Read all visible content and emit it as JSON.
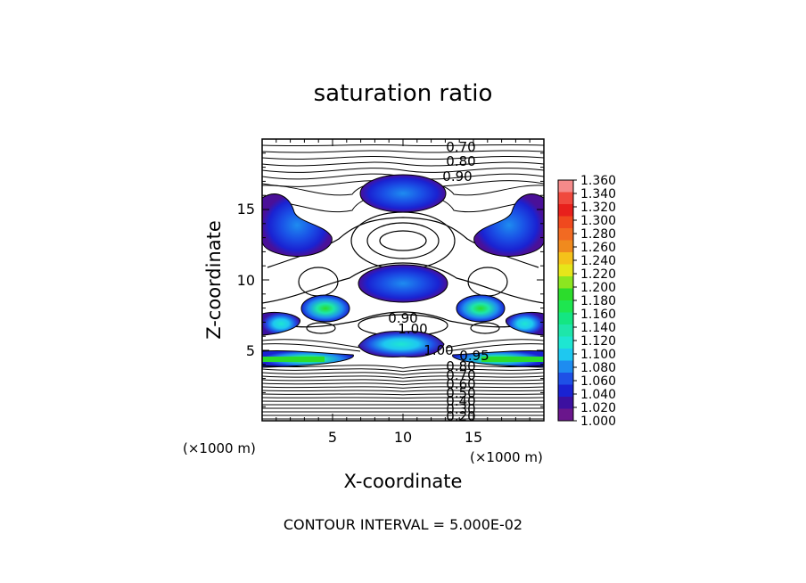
{
  "chart_data": {
    "type": "heatmap",
    "title": "saturation ratio",
    "xlabel": "X-coordinate",
    "ylabel": "Z-coordinate",
    "x_unit": "(×1000 m)",
    "z_unit": "(×1000 m)",
    "xlim": [
      0,
      20
    ],
    "ylim": [
      0,
      20
    ],
    "x_ticks": [
      "5",
      "10",
      "15"
    ],
    "y_ticks": [
      "5",
      "10",
      "15"
    ],
    "footer": "CONTOUR INTERVAL = 5.000E-02",
    "contour_interval": 0.05,
    "contour_labels_top": [
      "0.70",
      "0.80",
      "0.90"
    ],
    "contour_labels_mid": [
      "0.90",
      "1.00",
      "1.00",
      "0.95"
    ],
    "contour_labels_bottom": [
      "0.80",
      "0.70",
      "0.60",
      "0.50",
      "0.40",
      "0.30",
      "0.20"
    ],
    "colorbar": {
      "min": 1.0,
      "max": 1.36,
      "step": 0.02,
      "tick_labels": [
        "1.360",
        "1.340",
        "1.320",
        "1.300",
        "1.280",
        "1.260",
        "1.240",
        "1.220",
        "1.200",
        "1.180",
        "1.160",
        "1.140",
        "1.120",
        "1.100",
        "1.080",
        "1.060",
        "1.040",
        "1.020",
        "1.000"
      ],
      "colors": [
        "#f58a8a",
        "#f0493e",
        "#e8201c",
        "#f0491e",
        "#f26a22",
        "#f08a1e",
        "#f5c21a",
        "#e6e61a",
        "#8ce620",
        "#2cdc2c",
        "#1ee650",
        "#14e682",
        "#1ee6aa",
        "#1ee6d2",
        "#1ec8f0",
        "#1e8cf0",
        "#1e50e6",
        "#1a22d2",
        "#3c10a0",
        "#6a168c"
      ]
    },
    "features": [
      {
        "kind": "supersaturated_region",
        "x": 10.0,
        "z": 16.0,
        "peak": 1.08
      },
      {
        "kind": "supersaturated_region",
        "x": 1.5,
        "z": 13.5,
        "peak": 1.06
      },
      {
        "kind": "supersaturated_region",
        "x": 18.5,
        "z": 13.5,
        "peak": 1.06
      },
      {
        "kind": "supersaturated_region",
        "x": 10.0,
        "z": 10.0,
        "peak": 1.08
      },
      {
        "kind": "supersaturated_region",
        "x": 4.5,
        "z": 8.0,
        "peak": 1.12
      },
      {
        "kind": "supersaturated_region",
        "x": 15.5,
        "z": 8.0,
        "peak": 1.12
      },
      {
        "kind": "supersaturated_layer",
        "x": 10.0,
        "z": 5.5,
        "peak": 1.14
      },
      {
        "kind": "supersaturated_layer",
        "x": 2.0,
        "z": 4.5,
        "peak": 1.18
      },
      {
        "kind": "supersaturated_layer",
        "x": 18.0,
        "z": 4.5,
        "peak": 1.18
      }
    ]
  }
}
